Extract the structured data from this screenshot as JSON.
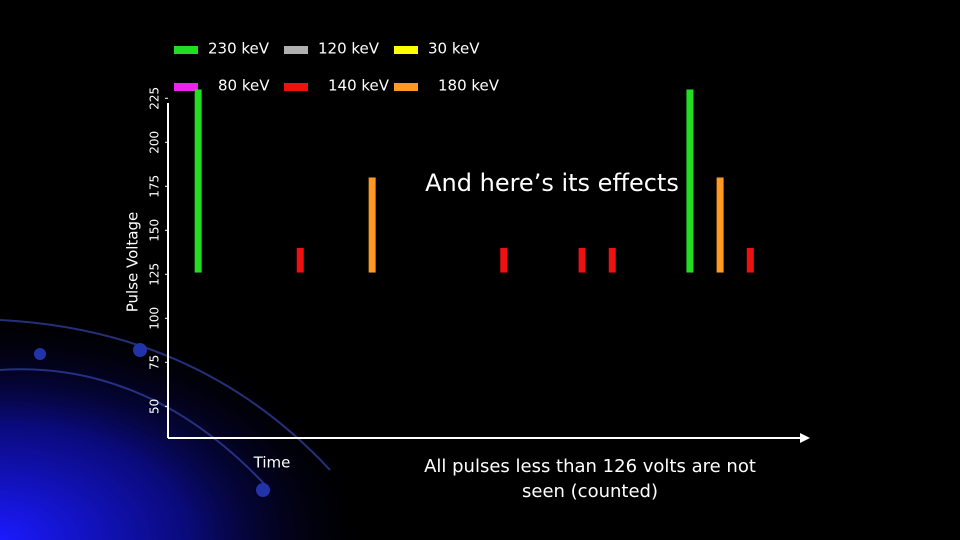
{
  "chart_data": {
    "type": "bar",
    "title": "And here’s its effects",
    "xlabel": "Time",
    "ylabel": "Pulse Voltage",
    "annotation": "All pulses less than 126 volts are not seen (counted)",
    "threshold": 126,
    "legend": [
      {
        "name": "230 keV",
        "color": "#22dd22"
      },
      {
        "name": "120 keV",
        "color": "#b0b0b0"
      },
      {
        "name": "30 keV",
        "color": "#ffff00"
      },
      {
        "name": "80 keV",
        "color": "#ee22ee"
      },
      {
        "name": "140 keV",
        "color": "#ee1111"
      },
      {
        "name": "180 keV",
        "color": "#ff9922"
      }
    ],
    "x": [
      4.7,
      20.6,
      31.8,
      52.3,
      64.5,
      69.2,
      81.3,
      86,
      90.7
    ],
    "values": [
      230,
      140,
      180,
      140,
      140,
      140,
      230,
      180,
      140
    ],
    "colors": [
      "#22dd22",
      "#ee1111",
      "#ff9922",
      "#ee1111",
      "#ee1111",
      "#ee1111",
      "#22dd22",
      "#ff9922",
      "#ee1111"
    ],
    "xlim": [
      0,
      100
    ],
    "ylim": [
      32,
      228
    ],
    "yticks": [
      50,
      75,
      100,
      125,
      150,
      175,
      200,
      225
    ]
  }
}
